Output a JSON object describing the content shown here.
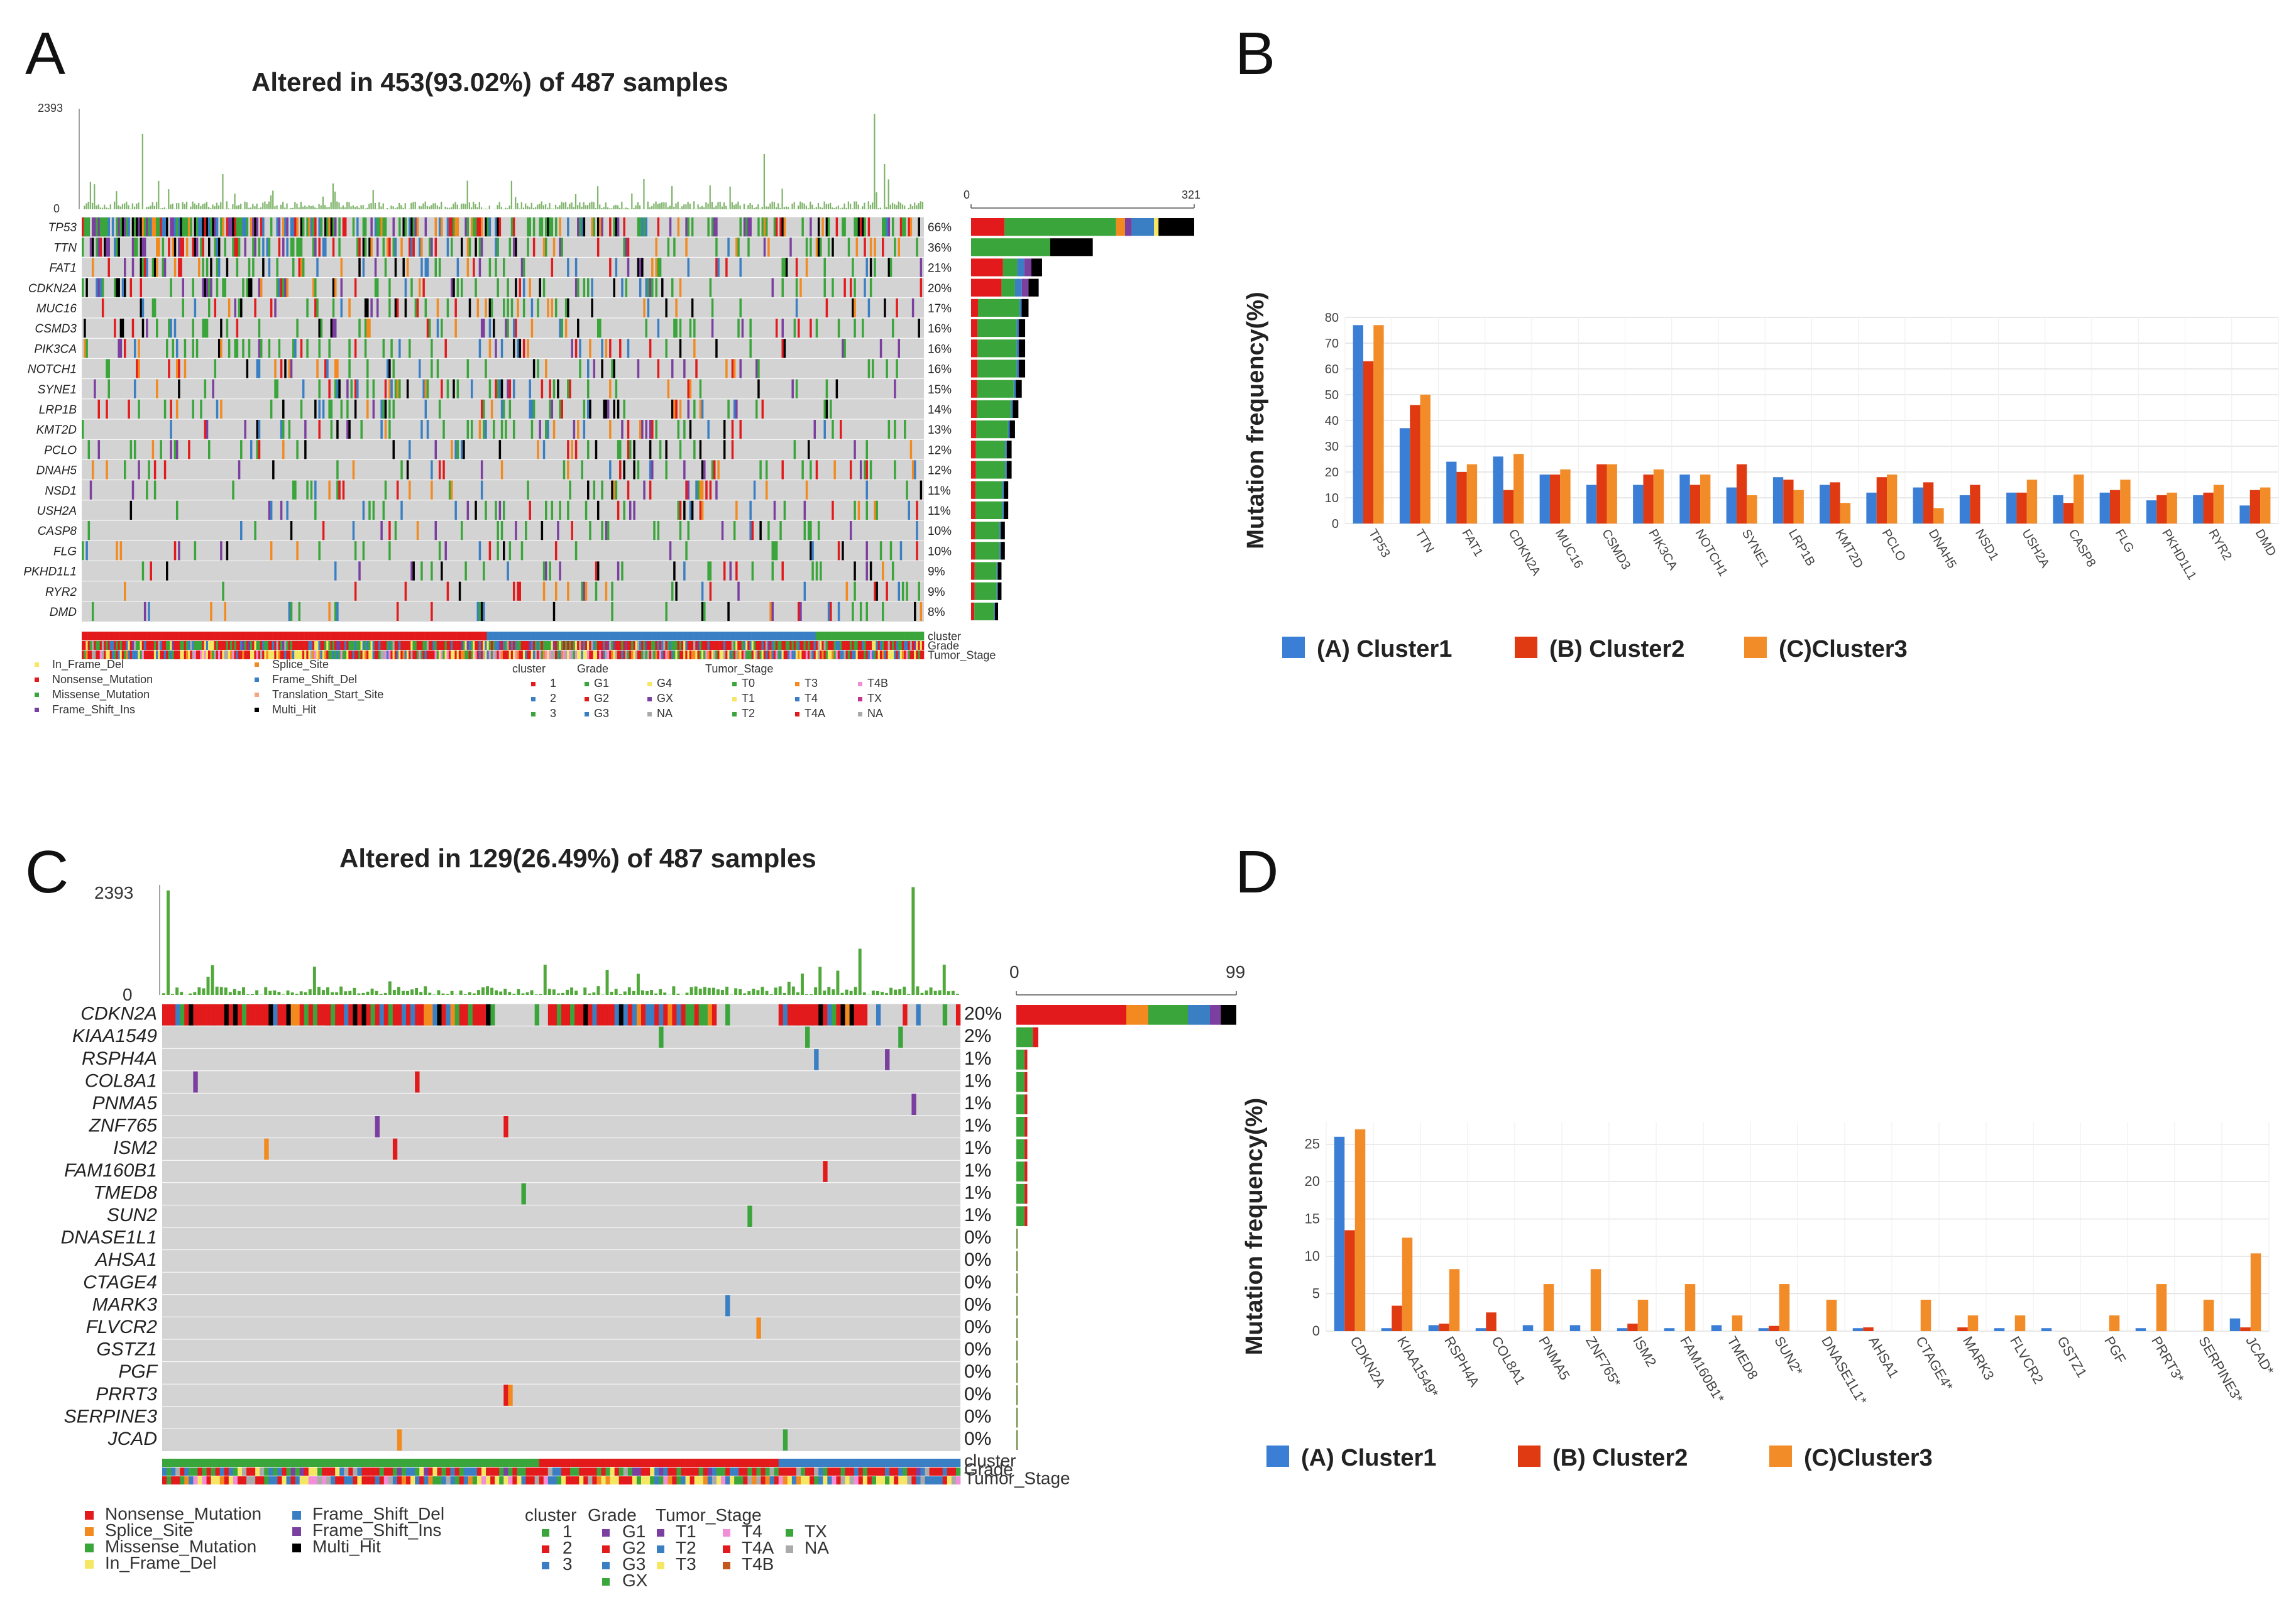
{
  "figure": {
    "colors": {
      "missense": "#3aa53a",
      "nonsense": "#e31a1c",
      "frameshift_del": "#3a7fc4",
      "frameshift_ins": "#7b3fa0",
      "splice": "#f28a1f",
      "inframe": "#f5e663",
      "multi": "#000000",
      "translation": "#f4a582",
      "background": "#d3d3d3",
      "cluster1": "#3a7fd5",
      "cluster2": "#e03a12",
      "cluster3": "#f28c28",
      "grid": "#d9d9d9"
    }
  },
  "panelA": {
    "letter": "A",
    "title": "Altered in 453(93.02%) of 487 samples",
    "tmb_max": "2393",
    "tmb_min": "0",
    "bar_axis_min": "0",
    "bar_axis_max": "321",
    "genes": [
      {
        "name": "TP53",
        "pct": "66%"
      },
      {
        "name": "TTN",
        "pct": "36%"
      },
      {
        "name": "FAT1",
        "pct": "21%"
      },
      {
        "name": "CDKN2A",
        "pct": "20%"
      },
      {
        "name": "MUC16",
        "pct": "17%"
      },
      {
        "name": "CSMD3",
        "pct": "16%"
      },
      {
        "name": "PIK3CA",
        "pct": "16%"
      },
      {
        "name": "NOTCH1",
        "pct": "16%"
      },
      {
        "name": "SYNE1",
        "pct": "15%"
      },
      {
        "name": "LRP1B",
        "pct": "14%"
      },
      {
        "name": "KMT2D",
        "pct": "13%"
      },
      {
        "name": "PCLO",
        "pct": "12%"
      },
      {
        "name": "DNAH5",
        "pct": "12%"
      },
      {
        "name": "NSD1",
        "pct": "11%"
      },
      {
        "name": "USH2A",
        "pct": "11%"
      },
      {
        "name": "CASP8",
        "pct": "10%"
      },
      {
        "name": "FLG",
        "pct": "10%"
      },
      {
        "name": "PKHD1L1",
        "pct": "9%"
      },
      {
        "name": "RYR2",
        "pct": "9%"
      },
      {
        "name": "DMD",
        "pct": "8%"
      }
    ],
    "anno_labels": [
      "cluster",
      "Grade",
      "Tumor_Stage"
    ],
    "legend_mut": [
      "In_Frame_Del",
      "Nonsense_Mutation",
      "Missense_Mutation",
      "Frame_Shift_Ins",
      "Splice_Site",
      "Frame_Shift_Del",
      "Translation_Start_Site",
      "Multi_Hit"
    ],
    "legend_heads": [
      "cluster",
      "Grade",
      "Tumor_Stage"
    ],
    "legend_cluster": [
      "1",
      "2",
      "3"
    ],
    "legend_grade": [
      "G1",
      "G2",
      "G3",
      "G4",
      "GX",
      "NA"
    ],
    "legend_stage": [
      "T0",
      "T1",
      "T2",
      "T3",
      "T4",
      "T4A",
      "T4B",
      "TX",
      "NA"
    ]
  },
  "panelC": {
    "letter": "C",
    "title": "Altered in 129(26.49%) of 487 samples",
    "tmb_max": "2393",
    "tmb_min": "0",
    "bar_axis_min": "0",
    "bar_axis_max": "99",
    "genes": [
      {
        "name": "CDKN2A",
        "pct": "20%"
      },
      {
        "name": "KIAA1549",
        "pct": "2%"
      },
      {
        "name": "RSPH4A",
        "pct": "1%"
      },
      {
        "name": "COL8A1",
        "pct": "1%"
      },
      {
        "name": "PNMA5",
        "pct": "1%"
      },
      {
        "name": "ZNF765",
        "pct": "1%"
      },
      {
        "name": "ISM2",
        "pct": "1%"
      },
      {
        "name": "FAM160B1",
        "pct": "1%"
      },
      {
        "name": "TMED8",
        "pct": "1%"
      },
      {
        "name": "SUN2",
        "pct": "1%"
      },
      {
        "name": "DNASE1L1",
        "pct": "0%"
      },
      {
        "name": "AHSA1",
        "pct": "0%"
      },
      {
        "name": "CTAGE4",
        "pct": "0%"
      },
      {
        "name": "MARK3",
        "pct": "0%"
      },
      {
        "name": "FLVCR2",
        "pct": "0%"
      },
      {
        "name": "GSTZ1",
        "pct": "0%"
      },
      {
        "name": "PGF",
        "pct": "0%"
      },
      {
        "name": "PRRT3",
        "pct": "0%"
      },
      {
        "name": "SERPINE3",
        "pct": "0%"
      },
      {
        "name": "JCAD",
        "pct": "0%"
      }
    ],
    "anno_labels": [
      "cluster",
      "Grade",
      "Tumor_Stage"
    ],
    "legend_mut": [
      "Nonsense_Mutation",
      "Splice_Site",
      "Missense_Mutation",
      "In_Frame_Del",
      "Frame_Shift_Del",
      "Frame_Shift_Ins",
      "Multi_Hit"
    ],
    "legend_heads": [
      "cluster",
      "Grade",
      "Tumor_Stage"
    ],
    "legend_cluster": [
      "1",
      "2",
      "3"
    ],
    "legend_grade": [
      "G1",
      "G2",
      "G3",
      "GX"
    ],
    "legend_stage": [
      "T1",
      "T2",
      "T3",
      "T4",
      "T4A",
      "T4B",
      "TX",
      "NA"
    ]
  },
  "chart_data": [
    {
      "panel": "B",
      "type": "bar",
      "ylabel": "Mutation frequency(%)",
      "ylim": [
        0,
        80
      ],
      "yticks": [
        "0",
        "10",
        "20",
        "30",
        "40",
        "50",
        "60",
        "70",
        "80"
      ],
      "categories": [
        "TP53",
        "TTN",
        "FAT1",
        "CDKN2A",
        "MUC16",
        "CSMD3",
        "PIK3CA",
        "NOTCH1",
        "SYNE1",
        "LRP1B",
        "KMT2D",
        "PCLO",
        "DNAH5",
        "NSD1",
        "USH2A",
        "CASP8",
        "FLG",
        "PKHD1L1",
        "RYR2",
        "DMD"
      ],
      "series": [
        {
          "name": "(A) Cluster1",
          "values": [
            77,
            37,
            24,
            26,
            19,
            15,
            15,
            19,
            14,
            18,
            15,
            12,
            14,
            11,
            12,
            11,
            12,
            9,
            11,
            7
          ]
        },
        {
          "name": "(B) Cluster2",
          "values": [
            63,
            46,
            20,
            13,
            19,
            23,
            19,
            15,
            23,
            17,
            16,
            18,
            16,
            15,
            12,
            8,
            13,
            11,
            12,
            13
          ]
        },
        {
          "name": "(C)Cluster3",
          "values": [
            77,
            50,
            23,
            27,
            21,
            23,
            21,
            19,
            11,
            13,
            8,
            19,
            6,
            0,
            17,
            19,
            17,
            12,
            15,
            14
          ]
        }
      ]
    },
    {
      "panel": "D",
      "type": "bar",
      "ylabel": "Mutation frequency(%)",
      "ylim": [
        0,
        28
      ],
      "yticks": [
        "0",
        "5",
        "10",
        "15",
        "20",
        "25"
      ],
      "categories": [
        "CDKN2A",
        "KIAA1549*",
        "RSPH4A",
        "COL8A1",
        "PNMA5",
        "ZNF765*",
        "ISM2",
        "FAM160B1*",
        "TMED8",
        "SUN2*",
        "DNASE1L1*",
        "AHSA1",
        "CTAGE4*",
        "MARK3",
        "FLVCR2",
        "GSTZ1",
        "PGF",
        "PRRT3*",
        "SERPINE3*",
        "JCAD*"
      ],
      "series": [
        {
          "name": "(A) Cluster1",
          "values": [
            26,
            0.4,
            0.8,
            0.4,
            0.8,
            0.8,
            0.4,
            0.4,
            0.8,
            0.4,
            0,
            0.4,
            0,
            0,
            0.4,
            0.4,
            0,
            0.4,
            0,
            1.7
          ]
        },
        {
          "name": "(B) Cluster2",
          "values": [
            13.5,
            3.4,
            1.0,
            2.5,
            0,
            0,
            1.0,
            0,
            0,
            0.7,
            0,
            0.5,
            0,
            0.5,
            0,
            0,
            0,
            0,
            0,
            0.5
          ]
        },
        {
          "name": "(C)Cluster3",
          "values": [
            27,
            12.5,
            8.3,
            0,
            6.3,
            8.3,
            4.2,
            6.3,
            2.1,
            6.3,
            4.2,
            0,
            4.2,
            2.1,
            2.1,
            0,
            2.1,
            6.3,
            4.2,
            10.4
          ]
        }
      ]
    }
  ]
}
